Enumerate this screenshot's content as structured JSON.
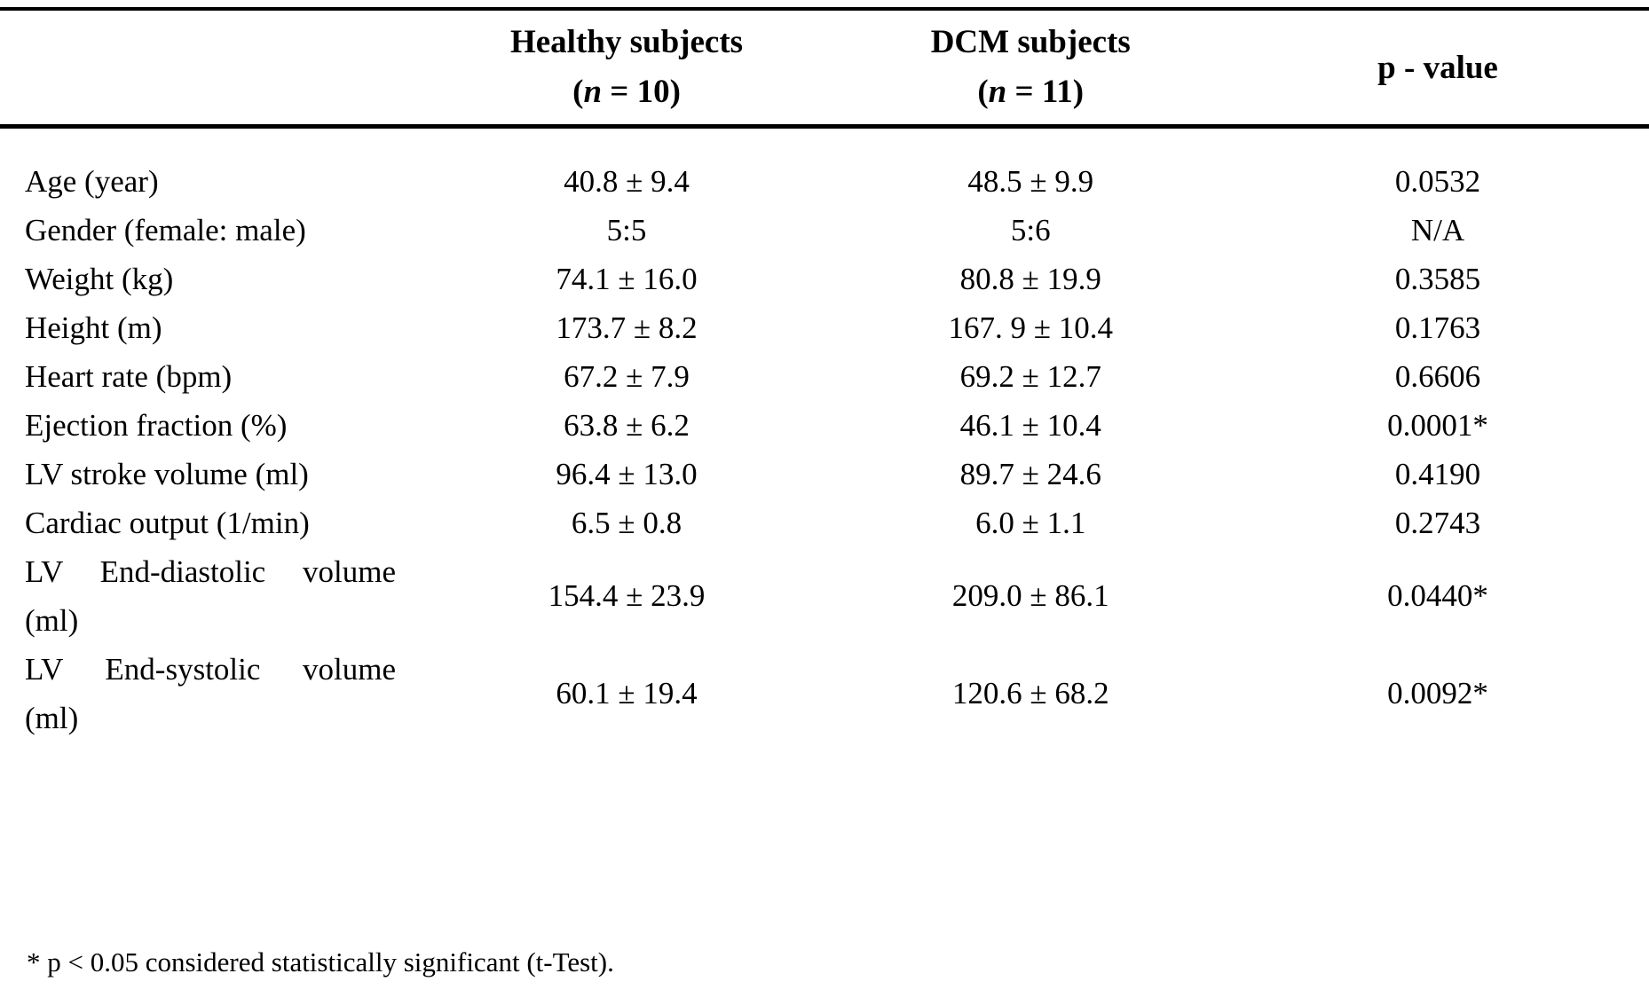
{
  "table": {
    "header": {
      "healthy": {
        "title": "Healthy subjects",
        "n_open": "(",
        "n_symbol": "n",
        "n_rest": " = 10)"
      },
      "dcm": {
        "title": "DCM subjects",
        "n_open": "(",
        "n_symbol": "n",
        "n_rest": " = 11)"
      },
      "p_label": "p - value"
    },
    "rows": [
      {
        "label": "Age (year)",
        "healthy": "40.8 ± 9.4",
        "dcm": "48.5 ± 9.9",
        "p": "0.0532"
      },
      {
        "label": "Gender (female: male)",
        "healthy": "5:5",
        "dcm": "5:6",
        "p": "N/A"
      },
      {
        "label": "Weight (kg)",
        "healthy": "74.1 ± 16.0",
        "dcm": "80.8 ± 19.9",
        "p": "0.3585"
      },
      {
        "label": "Height (m)",
        "healthy": "173.7 ± 8.2",
        "dcm": "167. 9 ± 10.4",
        "p": "0.1763"
      },
      {
        "label": "Heart rate (bpm)",
        "healthy": "67.2 ± 7.9",
        "dcm": "69.2 ± 12.7",
        "p": "0.6606"
      },
      {
        "label": "Ejection fraction (%)",
        "healthy": "63.8 ± 6.2",
        "dcm": "46.1 ± 10.4",
        "p": "0.0001*"
      },
      {
        "label": "LV stroke volume (ml)",
        "healthy": "96.4 ± 13.0",
        "dcm": "89.7 ± 24.6",
        "p": "0.4190"
      },
      {
        "label": "Cardiac output (1/min)",
        "healthy": "6.5 ± 0.8",
        "dcm": "6.0 ± 1.1",
        "p": "0.2743"
      },
      {
        "label": "LV End-diastolic volume",
        "label_line2": "(ml)",
        "healthy": "154.4 ± 23.9",
        "dcm": "209.0 ± 86.1",
        "p": "0.0440*"
      },
      {
        "label": "LV End-systolic volume",
        "label_line2": "(ml)",
        "healthy": "60.1 ± 19.4",
        "dcm": "120.6 ± 68.2",
        "p": "0.0092*"
      }
    ],
    "footnote": "* p < 0.05 considered statistically significant (t-Test)."
  }
}
